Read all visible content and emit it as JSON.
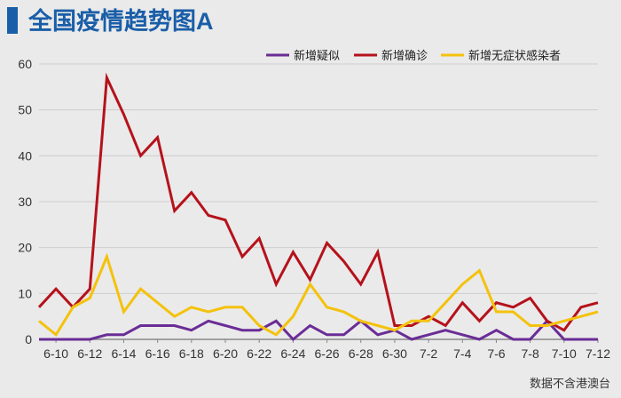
{
  "title": "全国疫情趋势图A",
  "footnote": "数据不含港澳台",
  "colors": {
    "title": "#1a5ea8",
    "axis": "#888888",
    "grid": "#cfcfcf"
  },
  "chart_data": {
    "type": "line",
    "title": "全国疫情趋势图A",
    "xlabel": "",
    "ylabel": "",
    "ylim": [
      0,
      60
    ],
    "yticks": [
      0,
      10,
      20,
      30,
      40,
      50,
      60
    ],
    "grid": true,
    "legend_position": "top-right",
    "x": [
      "6-9",
      "6-10",
      "6-11",
      "6-12",
      "6-13",
      "6-14",
      "6-15",
      "6-16",
      "6-17",
      "6-18",
      "6-19",
      "6-20",
      "6-21",
      "6-22",
      "6-23",
      "6-24",
      "6-25",
      "6-26",
      "6-27",
      "6-28",
      "6-29",
      "6-30",
      "7-1",
      "7-2",
      "7-3",
      "7-4",
      "7-5",
      "7-6",
      "7-7",
      "7-8",
      "7-9",
      "7-10",
      "7-11",
      "7-12"
    ],
    "xtick_labels": [
      "6-10",
      "6-12",
      "6-14",
      "6-16",
      "6-18",
      "6-20",
      "6-22",
      "6-24",
      "6-26",
      "6-28",
      "6-30",
      "7-2",
      "7-4",
      "7-6",
      "7-8",
      "7-10",
      "7-12"
    ],
    "series": [
      {
        "name": "新增疑似",
        "color": "#6a2d96",
        "values": [
          0,
          0,
          0,
          0,
          1,
          1,
          3,
          3,
          3,
          2,
          4,
          3,
          2,
          2,
          4,
          0,
          3,
          1,
          1,
          4,
          1,
          2,
          0,
          1,
          2,
          1,
          0,
          2,
          0,
          0,
          4,
          0,
          0,
          0
        ]
      },
      {
        "name": "新增确诊",
        "color": "#b5121b",
        "values": [
          7,
          11,
          7,
          11,
          57,
          49,
          40,
          44,
          28,
          32,
          27,
          26,
          18,
          22,
          12,
          19,
          13,
          21,
          17,
          12,
          19,
          3,
          3,
          5,
          3,
          8,
          4,
          8,
          7,
          9,
          4,
          2,
          7,
          8
        ]
      },
      {
        "name": "新增无症状感染者",
        "color": "#f4c20d",
        "values": [
          4,
          1,
          7,
          9,
          18,
          6,
          11,
          8,
          5,
          7,
          6,
          7,
          7,
          3,
          1,
          5,
          12,
          7,
          6,
          4,
          3,
          2,
          4,
          4,
          8,
          12,
          15,
          6,
          6,
          3,
          3,
          4,
          5,
          6
        ]
      }
    ]
  }
}
